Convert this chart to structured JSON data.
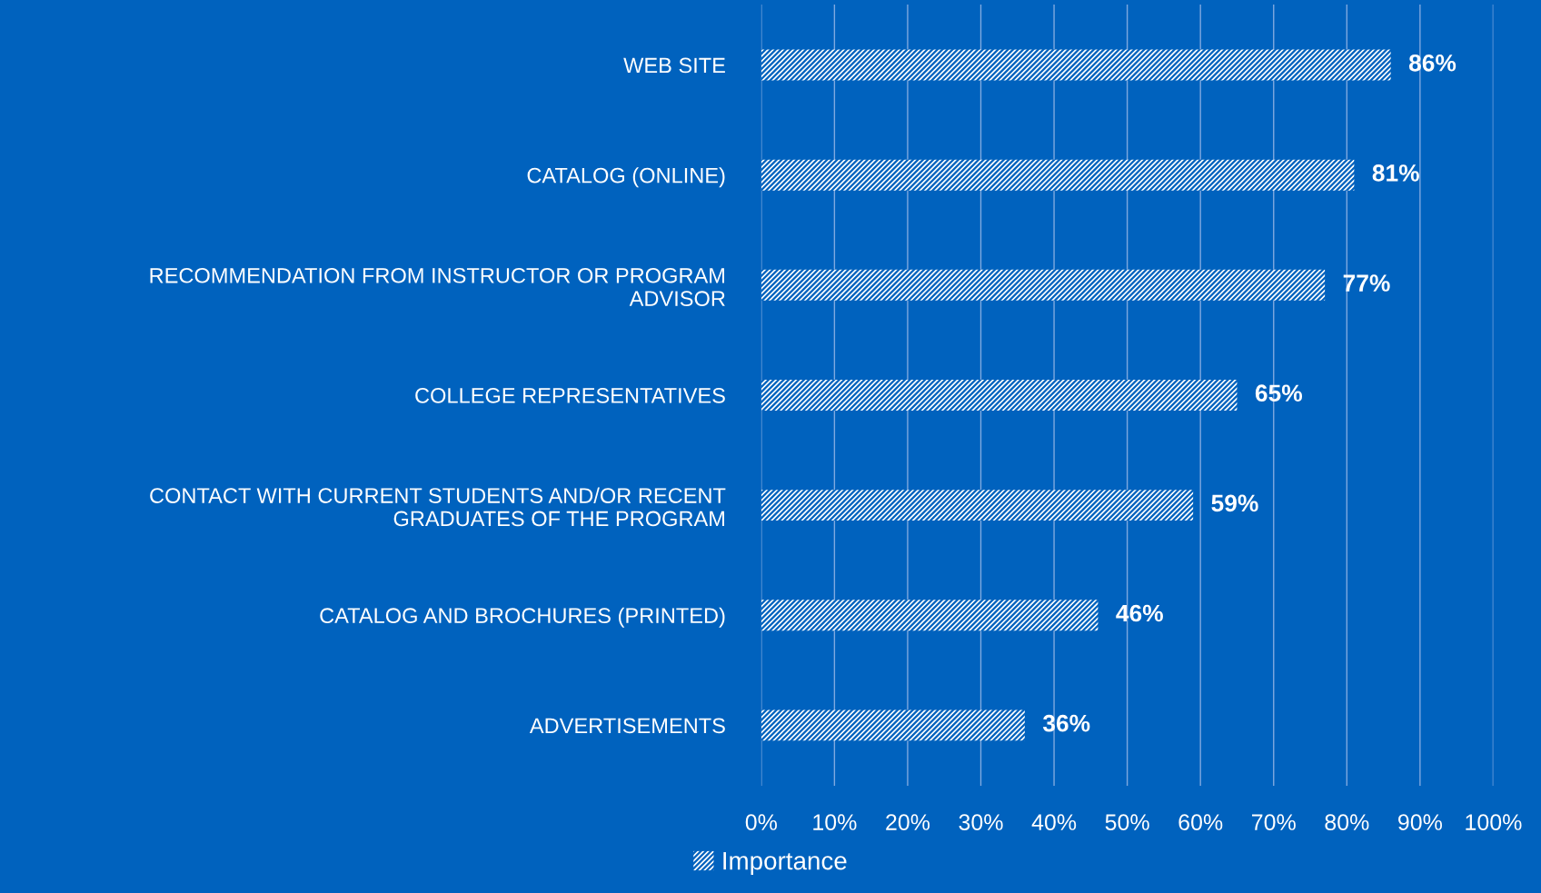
{
  "chart_data": {
    "type": "bar",
    "orientation": "horizontal",
    "categories": [
      "WEB SITE",
      "CATALOG (ONLINE)",
      "RECOMMENDATION FROM INSTRUCTOR OR PROGRAM ADVISOR",
      "COLLEGE REPRESENTATIVES",
      "CONTACT WITH CURRENT STUDENTS AND/OR RECENT GRADUATES OF THE PROGRAM",
      "CATALOG AND BROCHURES (PRINTED)",
      "ADVERTISEMENTS"
    ],
    "series": [
      {
        "name": "Importance",
        "color": "#ffffff",
        "values": [
          86,
          81,
          77,
          65,
          59,
          46,
          36
        ],
        "value_labels": [
          "86%",
          "81%",
          "77%",
          "65%",
          "59%",
          "46%",
          "36%"
        ]
      }
    ],
    "xlim": [
      0,
      100
    ],
    "xticks": [
      {
        "value": 0,
        "label": "0%"
      },
      {
        "value": 10,
        "label": "10%"
      },
      {
        "value": 20,
        "label": "20%"
      },
      {
        "value": 30,
        "label": "30%"
      },
      {
        "value": 40,
        "label": "40%"
      },
      {
        "value": 50,
        "label": "50%"
      },
      {
        "value": 60,
        "label": "60%"
      },
      {
        "value": 70,
        "label": "70%"
      },
      {
        "value": 80,
        "label": "80%"
      },
      {
        "value": 90,
        "label": "90%"
      },
      {
        "value": 100,
        "label": "100%"
      }
    ],
    "grid": "x",
    "legend": "bottom"
  }
}
